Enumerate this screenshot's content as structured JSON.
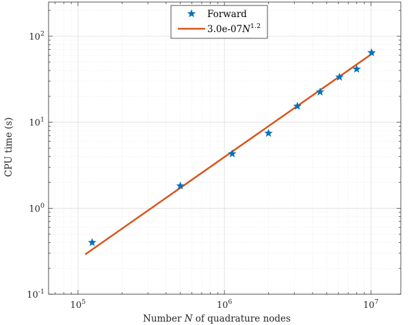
{
  "chart_data": {
    "type": "scatter",
    "xscale": "log",
    "yscale": "log",
    "xlim": [
      63000,
      16000000
    ],
    "ylim": [
      0.1,
      250
    ],
    "grid": true,
    "minor_grid": true,
    "xlabel": {
      "prefix": "Number ",
      "var": "N",
      "suffix": " of quadrature nodes"
    },
    "ylabel": "CPU time (s)",
    "x_ticks": [
      {
        "value": 100000,
        "base": "10",
        "exp": "5"
      },
      {
        "value": 1000000,
        "base": "10",
        "exp": "6"
      },
      {
        "value": 10000000,
        "base": "10",
        "exp": "7"
      }
    ],
    "y_ticks": [
      {
        "value": 0.1,
        "base": "10",
        "exp": "-1"
      },
      {
        "value": 1,
        "base": "10",
        "exp": "0"
      },
      {
        "value": 10,
        "base": "10",
        "exp": "1"
      },
      {
        "value": 100,
        "base": "10",
        "exp": "2"
      }
    ],
    "series": [
      {
        "name": "Forward",
        "kind": "marker",
        "marker": "pentagram",
        "color": "#0072BD",
        "x": [
          125000,
          500000,
          1130000,
          2000000,
          3150000,
          4500000,
          6100000,
          8000000,
          10100000
        ],
        "y": [
          0.4,
          1.82,
          4.3,
          7.45,
          15.4,
          22.5,
          33.5,
          41.5,
          64.5
        ]
      },
      {
        "name_prefix": "3.0e-07",
        "name_var": "N",
        "name_exp": "1.2",
        "kind": "line",
        "color": "#D95319",
        "x": [
          112000,
          10500000
        ],
        "y": [
          0.29,
          65.0
        ]
      }
    ],
    "legend": {
      "position": "top-center"
    }
  }
}
